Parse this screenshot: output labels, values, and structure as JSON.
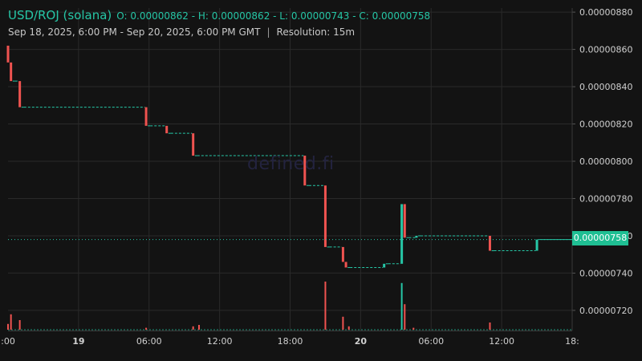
{
  "header": {
    "pair": "USD/ROJ (solana)",
    "open_label": "O:",
    "open": "0.00000862",
    "high_label": "H:",
    "high": "0.00000862",
    "low_label": "L:",
    "low": "0.00000743",
    "close_label": "C:",
    "close": "0.00000758",
    "range": "Sep 18, 2025, 6:00 PM - Sep 20, 2025, 6:00 PM GMT",
    "separator": "|",
    "resolution": "Resolution: 15m"
  },
  "watermark": "defined.fi",
  "last_price": "0.00000758",
  "colors": {
    "up": "#26c6a6",
    "down": "#ef5350",
    "background": "#131313",
    "grid": "#2a2a2a",
    "last_tag": "#1fbf93"
  },
  "chart_data": {
    "type": "candlestick",
    "title": "USD/ROJ (solana)",
    "y_tick_labels": [
      "0.00000720",
      "0.00000740",
      "0.00000760",
      "0.00000780",
      "0.00000800",
      "0.00000820",
      "0.00000840",
      "0.00000860",
      "0.00000880"
    ],
    "ylim": [
      7.092e-06,
      8.822e-06
    ],
    "x_tick_labels": [
      ":00",
      "19",
      "06:00",
      "12:00",
      "18:00",
      "20",
      "06:00",
      "12:00",
      "18:"
    ],
    "x_tick_bold": [
      false,
      true,
      false,
      false,
      false,
      true,
      false,
      false,
      false
    ],
    "xlim_hours": [
      0,
      48
    ],
    "x_tick_hours": [
      0,
      6,
      12,
      18,
      24,
      30,
      36,
      42,
      48
    ],
    "last_price_value": 7.58e-06,
    "grid": true,
    "candles": [
      {
        "t": 0.0,
        "o": 8.62e-06,
        "h": 8.62e-06,
        "l": 8.53e-06,
        "c": 8.53e-06
      },
      {
        "t": 0.25,
        "o": 8.53e-06,
        "h": 8.53e-06,
        "l": 8.43e-06,
        "c": 8.43e-06
      },
      {
        "t": 0.5,
        "o": 8.43e-06,
        "h": 8.43e-06,
        "l": 8.43e-06,
        "c": 8.43e-06
      },
      {
        "t": 1.0,
        "o": 8.43e-06,
        "h": 8.43e-06,
        "l": 8.29e-06,
        "c": 8.29e-06
      },
      {
        "t": 1.25,
        "o": 8.29e-06,
        "h": 8.29e-06,
        "l": 8.29e-06,
        "c": 8.29e-06
      },
      {
        "t": 11.75,
        "o": 8.29e-06,
        "h": 8.29e-06,
        "l": 8.19e-06,
        "c": 8.19e-06
      },
      {
        "t": 12.0,
        "o": 8.19e-06,
        "h": 8.19e-06,
        "l": 8.19e-06,
        "c": 8.19e-06
      },
      {
        "t": 13.5,
        "o": 8.19e-06,
        "h": 8.19e-06,
        "l": 8.15e-06,
        "c": 8.15e-06
      },
      {
        "t": 13.75,
        "o": 8.15e-06,
        "h": 8.15e-06,
        "l": 8.15e-06,
        "c": 8.15e-06
      },
      {
        "t": 15.75,
        "o": 8.15e-06,
        "h": 8.15e-06,
        "l": 8.03e-06,
        "c": 8.03e-06
      },
      {
        "t": 16.0,
        "o": 8.03e-06,
        "h": 8.03e-06,
        "l": 8.03e-06,
        "c": 8.03e-06
      },
      {
        "t": 25.25,
        "o": 8.03e-06,
        "h": 8.03e-06,
        "l": 7.87e-06,
        "c": 7.87e-06
      },
      {
        "t": 25.5,
        "o": 7.87e-06,
        "h": 7.87e-06,
        "l": 7.87e-06,
        "c": 7.87e-06
      },
      {
        "t": 27.0,
        "o": 7.87e-06,
        "h": 7.87e-06,
        "l": 7.54e-06,
        "c": 7.54e-06
      },
      {
        "t": 27.25,
        "o": 7.54e-06,
        "h": 7.54e-06,
        "l": 7.54e-06,
        "c": 7.54e-06
      },
      {
        "t": 28.5,
        "o": 7.54e-06,
        "h": 7.54e-06,
        "l": 7.46e-06,
        "c": 7.46e-06
      },
      {
        "t": 28.75,
        "o": 7.46e-06,
        "h": 7.46e-06,
        "l": 7.43e-06,
        "c": 7.43e-06
      },
      {
        "t": 29.0,
        "o": 7.43e-06,
        "h": 7.43e-06,
        "l": 7.43e-06,
        "c": 7.43e-06
      },
      {
        "t": 32.0,
        "o": 7.43e-06,
        "h": 7.45e-06,
        "l": 7.43e-06,
        "c": 7.45e-06
      },
      {
        "t": 32.25,
        "o": 7.45e-06,
        "h": 7.45e-06,
        "l": 7.45e-06,
        "c": 7.45e-06
      },
      {
        "t": 33.5,
        "o": 7.45e-06,
        "h": 7.77e-06,
        "l": 7.45e-06,
        "c": 7.77e-06
      },
      {
        "t": 33.75,
        "o": 7.77e-06,
        "h": 7.77e-06,
        "l": 7.59e-06,
        "c": 7.59e-06
      },
      {
        "t": 34.0,
        "o": 7.59e-06,
        "h": 7.59e-06,
        "l": 7.59e-06,
        "c": 7.59e-06
      },
      {
        "t": 34.75,
        "o": 7.59e-06,
        "h": 7.6e-06,
        "l": 7.59e-06,
        "c": 7.6e-06
      },
      {
        "t": 35.0,
        "o": 7.6e-06,
        "h": 7.6e-06,
        "l": 7.6e-06,
        "c": 7.6e-06
      },
      {
        "t": 41.0,
        "o": 7.6e-06,
        "h": 7.6e-06,
        "l": 7.52e-06,
        "c": 7.52e-06
      },
      {
        "t": 41.25,
        "o": 7.52e-06,
        "h": 7.52e-06,
        "l": 7.52e-06,
        "c": 7.52e-06
      },
      {
        "t": 45.0,
        "o": 7.52e-06,
        "h": 7.58e-06,
        "l": 7.52e-06,
        "c": 7.58e-06
      },
      {
        "t": 45.25,
        "o": 7.58e-06,
        "h": 7.58e-06,
        "l": 7.58e-06,
        "c": 7.58e-06
      }
    ],
    "volume_relative_max": 1.0,
    "volumes": [
      {
        "t": 0.0,
        "v": 0.12,
        "dir": "down"
      },
      {
        "t": 0.25,
        "v": 0.32,
        "dir": "down"
      },
      {
        "t": 1.0,
        "v": 0.2,
        "dir": "down"
      },
      {
        "t": 11.75,
        "v": 0.04,
        "dir": "down"
      },
      {
        "t": 15.75,
        "v": 0.07,
        "dir": "down"
      },
      {
        "t": 16.25,
        "v": 0.1,
        "dir": "down"
      },
      {
        "t": 27.0,
        "v": 1.0,
        "dir": "down"
      },
      {
        "t": 28.5,
        "v": 0.27,
        "dir": "down"
      },
      {
        "t": 29.0,
        "v": 0.07,
        "dir": "down"
      },
      {
        "t": 33.5,
        "v": 0.97,
        "dir": "up"
      },
      {
        "t": 33.75,
        "v": 0.53,
        "dir": "down"
      },
      {
        "t": 34.5,
        "v": 0.04,
        "dir": "down"
      },
      {
        "t": 41.0,
        "v": 0.15,
        "dir": "down"
      }
    ]
  }
}
